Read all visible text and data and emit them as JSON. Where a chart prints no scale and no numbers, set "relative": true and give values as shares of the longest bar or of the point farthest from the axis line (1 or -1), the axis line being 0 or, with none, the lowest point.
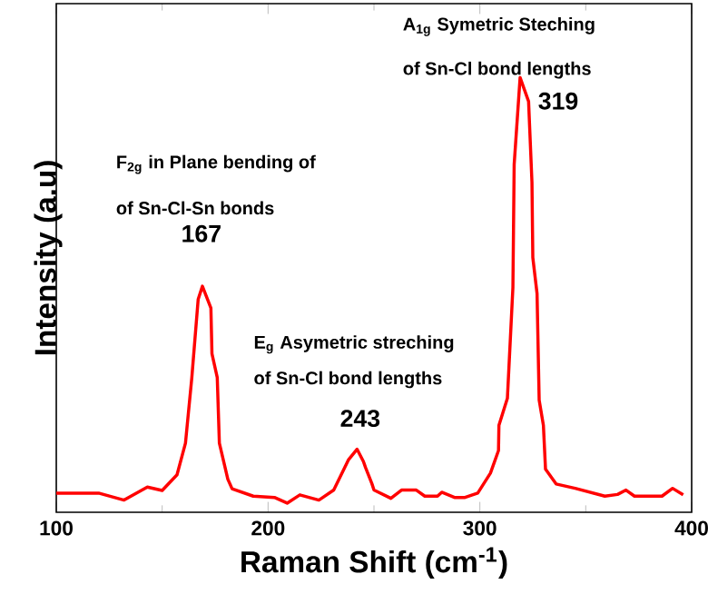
{
  "chart_data": {
    "type": "line",
    "relative": true,
    "xlabel": "Raman Shift (cm$^{-1}$)",
    "ylabel": "Intensity (a.u)",
    "xlim": [
      100,
      400
    ],
    "xticks": [
      100,
      200,
      300,
      400
    ],
    "grid": false,
    "marker": "none",
    "line_style": "solid",
    "tick_labels": "x",
    "annotations": [
      "F$_{2g}$ in Plane bending of",
      "of Sn-Cl-Sn bonds",
      {
        "text": "167",
        "x": 167,
        "y": 0.52
      },
      "E$_{g}$ Asymetric streching",
      "of Sn-Cl bond lengths",
      {
        "text": "243",
        "x": 243,
        "y": 0.145
      },
      "A$_{1g}$ Symetric Steching",
      "of Sn-Cl bond  lengths",
      {
        "text": "319",
        "x": 319,
        "y": 1.0
      }
    ],
    "series": [
      {
        "color": "#ff0000",
        "x": [
          100,
          120,
          132,
          143,
          150,
          157,
          161,
          164,
          167,
          169,
          173,
          173.5,
          176,
          177,
          181,
          183,
          193,
          203,
          209,
          215,
          224,
          231,
          238,
          242,
          245,
          246,
          249,
          250,
          258,
          263,
          270,
          274,
          280,
          282,
          288,
          293,
          299,
          305,
          308.8,
          309,
          313,
          315.6,
          316.2,
          319,
          323,
          324.6,
          325,
          327,
          328,
          330,
          331,
          336,
          345,
          359,
          365,
          369,
          373,
          386,
          391,
          396
        ],
        "values": [
          0.044,
          0.044,
          0.028,
          0.058,
          0.05,
          0.086,
          0.159,
          0.31,
          0.49,
          0.52,
          0.47,
          0.365,
          0.31,
          0.159,
          0.076,
          0.054,
          0.037,
          0.034,
          0.021,
          0.04,
          0.028,
          0.051,
          0.121,
          0.145,
          0.117,
          0.103,
          0.066,
          0.051,
          0.032,
          0.051,
          0.051,
          0.037,
          0.037,
          0.046,
          0.034,
          0.034,
          0.044,
          0.09,
          0.142,
          0.2,
          0.262,
          0.517,
          0.8,
          1.0,
          0.945,
          0.759,
          0.586,
          0.503,
          0.258,
          0.2,
          0.099,
          0.065,
          0.055,
          0.037,
          0.041,
          0.051,
          0.037,
          0.037,
          0.055,
          0.04
        ]
      }
    ]
  }
}
